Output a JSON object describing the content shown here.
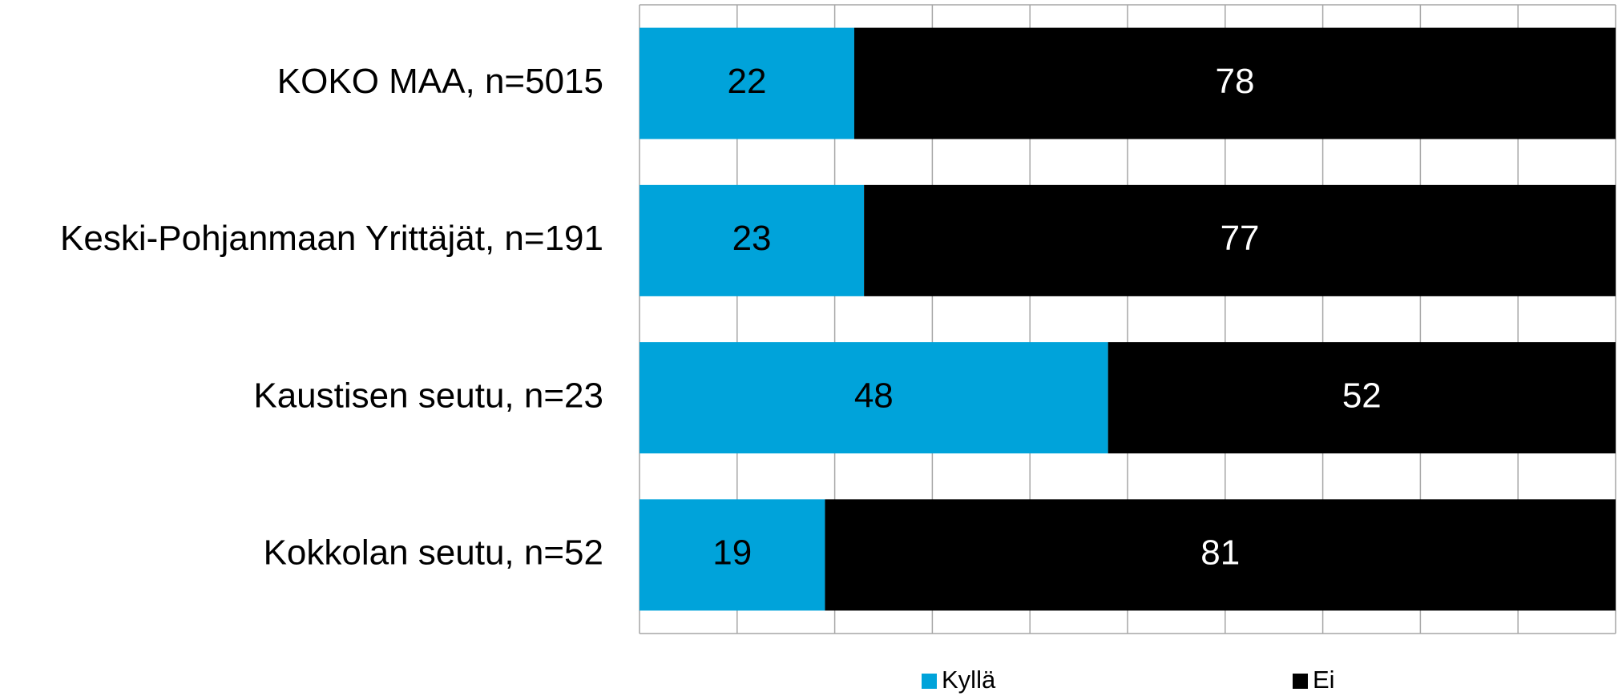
{
  "chart_data": {
    "type": "stacked-barh",
    "categories": [
      "KOKO MAA, n=5015",
      "Keski-Pohjanmaan Yrittäjät, n=191",
      "Kaustisen seutu, n=23",
      "Kokkolan seutu, n=52"
    ],
    "series": [
      {
        "name": "Kyllä",
        "color": "#00a3da",
        "values": [
          22,
          23,
          48,
          19
        ]
      },
      {
        "name": "Ei",
        "color": "#000000",
        "values": [
          78,
          77,
          52,
          81
        ]
      }
    ],
    "xlim": [
      0,
      100
    ],
    "xticks": [
      0,
      10,
      20,
      30,
      40,
      50,
      60,
      70,
      80,
      90,
      100
    ],
    "grid": true,
    "legend": "bottom"
  }
}
